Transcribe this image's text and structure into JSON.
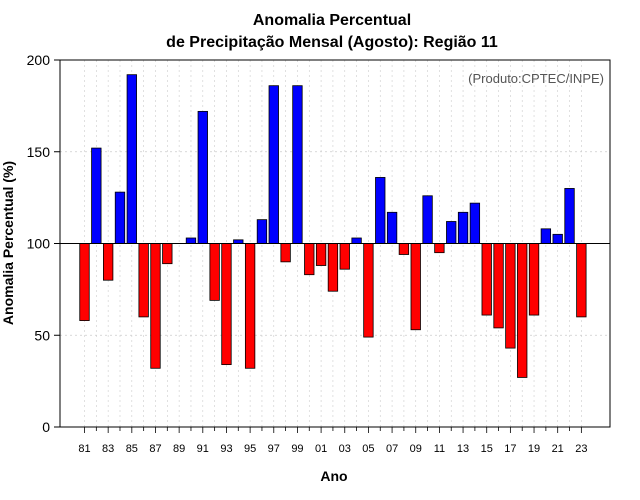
{
  "chart_data": {
    "type": "bar",
    "title_line1": "Anomalia Percentual",
    "title_line2": "de Precipitação Mensal (Agosto): Região 11",
    "xlabel": "Ano",
    "ylabel": "Anomalia Percentual (%)",
    "credit": "(Produto:CPTEC/INPE)",
    "ylim": [
      0,
      200
    ],
    "baseline": 100,
    "yticks": [
      "0",
      "50",
      "100",
      "150",
      "200"
    ],
    "xtick_labels": [
      "81",
      "83",
      "85",
      "87",
      "89",
      "91",
      "93",
      "95",
      "97",
      "99",
      "01",
      "03",
      "05",
      "07",
      "09",
      "11",
      "13",
      "15",
      "17",
      "19",
      "21",
      "23"
    ],
    "categories": [
      "1981",
      "1982",
      "1983",
      "1984",
      "1985",
      "1986",
      "1987",
      "1988",
      "1989",
      "1990",
      "1991",
      "1992",
      "1993",
      "1994",
      "1995",
      "1996",
      "1997",
      "1998",
      "1999",
      "2000",
      "2001",
      "2002",
      "2003",
      "2004",
      "2005",
      "2006",
      "2007",
      "2008",
      "2009",
      "2010",
      "2011",
      "2012",
      "2013",
      "2014",
      "2015",
      "2016",
      "2017",
      "2018",
      "2019",
      "2020",
      "2021",
      "2022",
      "2023"
    ],
    "values": [
      58,
      152,
      80,
      128,
      192,
      60,
      32,
      89,
      100,
      103,
      172,
      69,
      34,
      102,
      32,
      113,
      186,
      90,
      186,
      83,
      88,
      74,
      86,
      103,
      49,
      136,
      117,
      94,
      53,
      126,
      95,
      112,
      117,
      122,
      61,
      54,
      43,
      27,
      61,
      108,
      105,
      130,
      60
    ],
    "colors": {
      "above": "#0000ff",
      "below": "#ff0000",
      "outline": "#000000",
      "grid": "#cccccc"
    }
  }
}
